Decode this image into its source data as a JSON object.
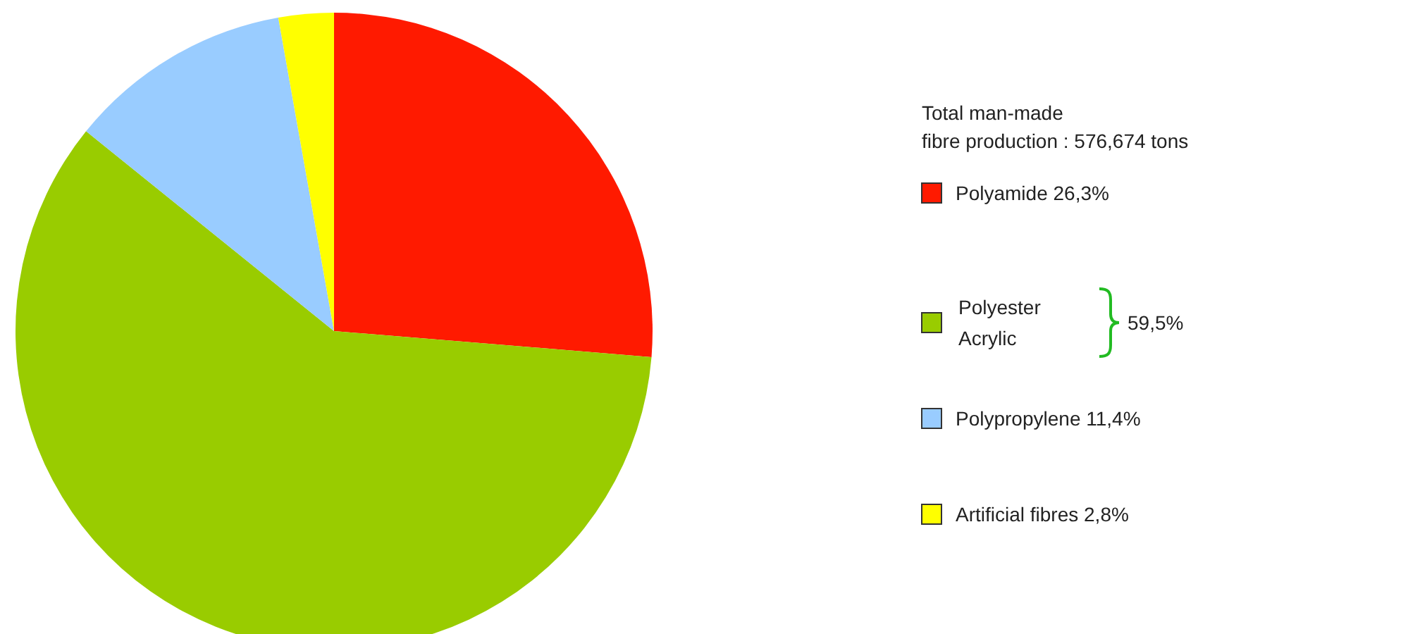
{
  "chart_data": {
    "type": "pie",
    "legend_title": "Total man-made\nfibre production : 576,674 tons",
    "legend": "right",
    "categories": [
      "Polyamide",
      "Polyester\nAcrylic",
      "Polypropylene",
      "Artificial fibres"
    ],
    "values": [
      26.3,
      59.5,
      11.4,
      2.8
    ],
    "value_labels": [
      "26,3%",
      "59,5%",
      "11,4%",
      "2,8%"
    ],
    "colors": [
      "#ff1a00",
      "#99cc00",
      "#99ccff",
      "#ffff00"
    ]
  }
}
